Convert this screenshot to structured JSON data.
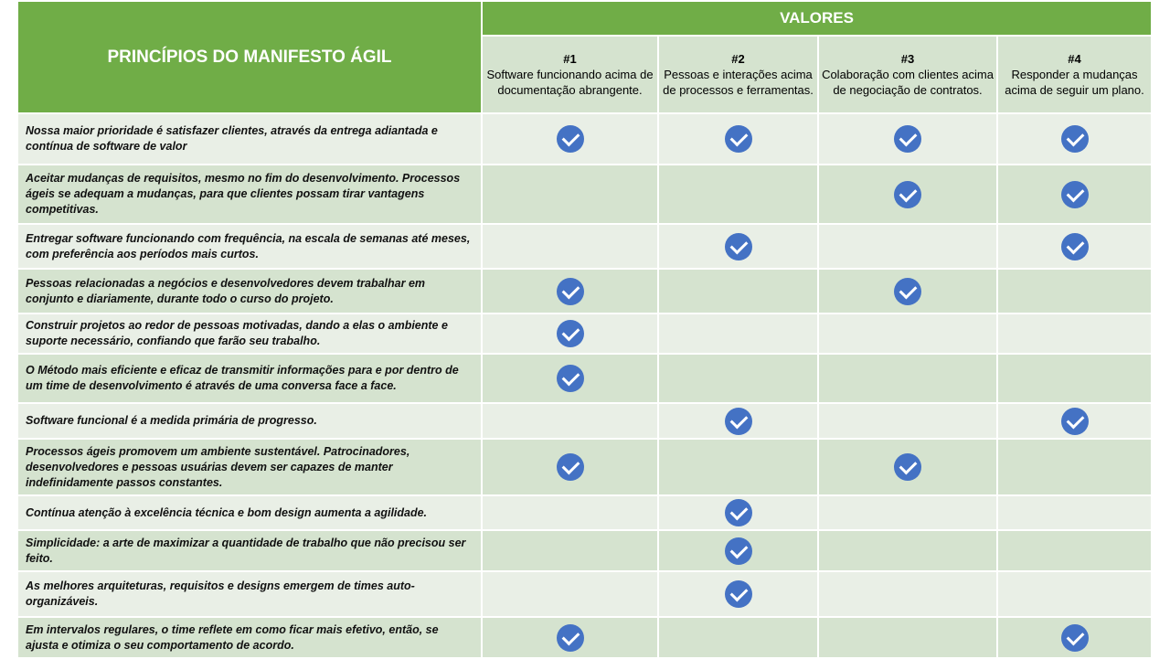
{
  "header": {
    "title": "PRINCÍPIOS DO MANIFESTO ÁGIL",
    "values_label": "VALORES",
    "values": [
      {
        "num": "#1",
        "text": "Software funcionando acima de documentação abrangente."
      },
      {
        "num": "#2",
        "text": "Pessoas e interações acima de processos e ferramentas."
      },
      {
        "num": "#3",
        "text": "Colaboração com clientes acima de negociação de contratos."
      },
      {
        "num": "#4",
        "text": "Responder a mudanças acima de seguir um plano."
      }
    ]
  },
  "icons": {
    "check": "check-circle-icon",
    "check_color": "#4472c4"
  },
  "colors": {
    "header_green": "#70ad47",
    "row_light": "#e9efe6",
    "row_dark": "#d5e3cf"
  },
  "rows": [
    {
      "text": "Nossa maior prioridade é satisfazer clientes, através da entrega adiantada e contínua de software de valor",
      "checks": [
        true,
        true,
        true,
        true
      ]
    },
    {
      "text": "Aceitar mudanças de requisitos, mesmo no fim do desenvolvimento. Processos ágeis se  adequam a mudanças, para que clientes possam tirar vantagens competitivas.",
      "checks": [
        false,
        false,
        true,
        true
      ]
    },
    {
      "text": "Entregar software funcionando com frequência, na escala de semanas até meses, com preferência aos períodos mais curtos.",
      "checks": [
        false,
        true,
        false,
        true
      ]
    },
    {
      "text": "Pessoas relacionadas a negócios e desenvolvedores devem trabalhar em conjunto e diariamente, durante todo o curso do projeto.",
      "checks": [
        true,
        false,
        true,
        false
      ]
    },
    {
      "text": "Construir projetos ao redor de pessoas motivadas, dando a elas o ambiente e suporte necessário, confiando que farão seu trabalho.",
      "checks": [
        true,
        false,
        false,
        false
      ]
    },
    {
      "text": "O Método mais eficiente e eficaz de transmitir informações para e por dentro de um time de desenvolvimento é através de uma conversa face a face.",
      "checks": [
        true,
        false,
        false,
        false
      ]
    },
    {
      "text": "Software funcional é a medida primária de progresso.",
      "checks": [
        false,
        true,
        false,
        true
      ]
    },
    {
      "text": "Processos ágeis promovem um ambiente sustentável. Patrocinadores, desenvolvedores e pessoas usuárias devem ser capazes de manter indefinidamente passos constantes.",
      "checks": [
        true,
        false,
        true,
        false
      ]
    },
    {
      "text": "Contínua atenção à excelência técnica e  bom design aumenta a agilidade.",
      "checks": [
        false,
        true,
        false,
        false
      ]
    },
    {
      "text": "Simplicidade: a arte de maximizar a quantidade de trabalho que não precisou ser feito.",
      "checks": [
        false,
        true,
        false,
        false
      ]
    },
    {
      "text": " As melhores arquiteturas, requisitos e designs emergem de times auto-organizáveis.",
      "checks": [
        false,
        true,
        false,
        false
      ]
    },
    {
      "text": "Em intervalos regulares, o time reflete em como ficar mais efetivo, então, se ajusta e otimiza o seu comportamento de acordo.",
      "checks": [
        true,
        false,
        false,
        true
      ]
    }
  ]
}
